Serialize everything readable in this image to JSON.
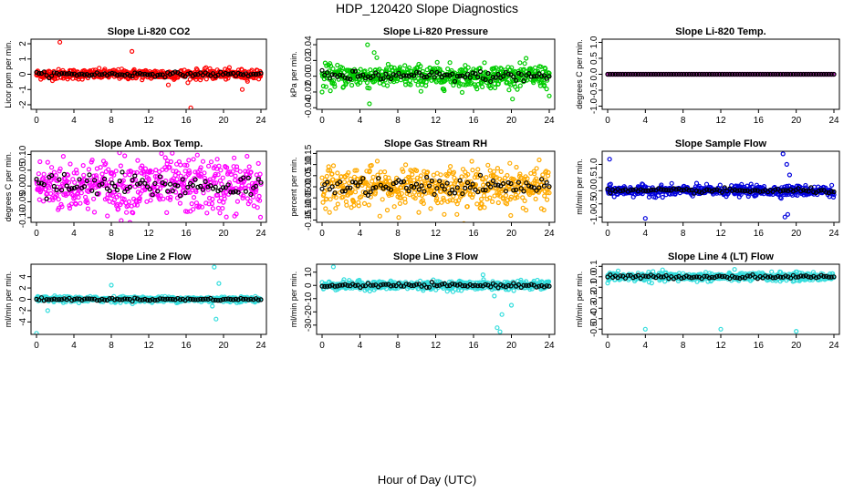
{
  "page": {
    "title": "HDP_120420  Slope Diagnostics",
    "xlabel": "Hour of Day (UTC)"
  },
  "chart_data": [
    {
      "type": "scatter",
      "title": "Slope Li-820 CO2",
      "ylabel": "Licor ppm per min.",
      "xlim": [
        0,
        24
      ],
      "ylim": [
        -2.3,
        2.3
      ],
      "xticks": [
        "0",
        "4",
        "8",
        "12",
        "16",
        "20",
        "24"
      ],
      "yticks": [
        "-2",
        "-1",
        "0",
        "1",
        "2"
      ],
      "ytick_values": [
        -2,
        -1,
        0,
        1,
        2
      ],
      "color": "#ff0000",
      "spread": 0.2,
      "outliers": [
        [
          2.5,
          2.1
        ],
        [
          10.2,
          1.5
        ],
        [
          16.5,
          -2.2
        ],
        [
          22,
          -1.0
        ],
        [
          14.1,
          -0.7
        ]
      ]
    },
    {
      "type": "scatter",
      "title": "Slope Li-820 Pressure",
      "ylabel": "kPa per min.",
      "xlim": [
        0,
        24
      ],
      "ylim": [
        -0.042,
        0.047
      ],
      "xticks": [
        "0",
        "4",
        "8",
        "12",
        "16",
        "20",
        "24"
      ],
      "yticks": [
        "-0.04",
        "-0.02",
        "0.00",
        "0.02",
        "0.04"
      ],
      "ytick_values": [
        -0.04,
        -0.02,
        0,
        0.02,
        0.04
      ],
      "color": "#00cc00",
      "spread": 0.009,
      "outliers": [
        [
          5,
          -0.035
        ],
        [
          5.5,
          0.03
        ],
        [
          0,
          -0.02
        ],
        [
          24,
          -0.025
        ],
        [
          4.8,
          0.04
        ]
      ]
    },
    {
      "type": "scatter",
      "title": "Slope Li-820 Temp.",
      "ylabel": "degrees C per min.",
      "xlim": [
        0,
        24
      ],
      "ylim": [
        -1.1,
        1.1
      ],
      "xticks": [
        "0",
        "4",
        "8",
        "12",
        "16",
        "20",
        "24"
      ],
      "yticks": [
        "-1.0",
        "-0.5",
        "0.0",
        "0.5",
        "1.0"
      ],
      "ytick_values": [
        -1,
        -0.5,
        0,
        0.5,
        1
      ],
      "color": "#cc33cc",
      "spread": 0.0,
      "outliers": []
    },
    {
      "type": "scatter",
      "title": "Slope Amb. Box Temp.",
      "ylabel": "degrees C per min.",
      "xlim": [
        0,
        24
      ],
      "ylim": [
        -0.115,
        0.11
      ],
      "xticks": [
        "0",
        "4",
        "8",
        "12",
        "16",
        "20",
        "24"
      ],
      "yticks": [
        "-0.10",
        "-0.05",
        "0.00",
        "0.05",
        "0.10"
      ],
      "ytick_values": [
        -0.1,
        -0.05,
        0,
        0.05,
        0.1
      ],
      "color": "#ff00ff",
      "spread": 0.055,
      "outliers": []
    },
    {
      "type": "scatter",
      "title": "Slope Gas Stream RH",
      "ylabel": "percent per min.",
      "xlim": [
        0,
        24
      ],
      "ylim": [
        -0.16,
        0.16
      ],
      "xticks": [
        "0",
        "4",
        "8",
        "12",
        "16",
        "20",
        "24"
      ],
      "yticks": [
        "-0.15",
        "-0.10",
        "-0.05",
        "0.00",
        "0.05",
        "0.10",
        "0.15"
      ],
      "ytick_values": [
        -0.15,
        -0.1,
        -0.05,
        0,
        0.05,
        0.1,
        0.15
      ],
      "color": "#ffaa00",
      "spread": 0.055,
      "outliers": []
    },
    {
      "type": "scatter",
      "title": "Slope Sample Flow",
      "ylabel": "ml/min per min.",
      "xlim": [
        0,
        24
      ],
      "ylim": [
        -1.2,
        1.5
      ],
      "xticks": [
        "0",
        "4",
        "8",
        "12",
        "16",
        "20",
        "24"
      ],
      "yticks": [
        "-1.0",
        "-0.5",
        "0.0",
        "0.5",
        "1.0"
      ],
      "ytick_values": [
        -1,
        -0.5,
        0,
        0.5,
        1
      ],
      "color": "#0000dd",
      "spread": 0.12,
      "outliers": [
        [
          0.2,
          1.2
        ],
        [
          4,
          -1.05
        ],
        [
          18.6,
          1.4
        ],
        [
          19,
          1.0
        ],
        [
          19.3,
          0.6
        ],
        [
          19.1,
          -0.9
        ],
        [
          18.8,
          -1.0
        ]
      ]
    },
    {
      "type": "scatter",
      "title": "Slope Line 2 Flow",
      "ylabel": "ml/min per min.",
      "xlim": [
        0,
        24
      ],
      "ylim": [
        -6.2,
        6.2
      ],
      "xticks": [
        "0",
        "4",
        "8",
        "12",
        "16",
        "20",
        "24"
      ],
      "yticks": [
        "-4",
        "-2",
        "0",
        "2",
        "4"
      ],
      "ytick_values": [
        -4,
        -2,
        0,
        2,
        4
      ],
      "color": "#33dddd",
      "spread": 0.3,
      "outliers": [
        [
          0,
          -6
        ],
        [
          8,
          2.5
        ],
        [
          19,
          5.7
        ],
        [
          19.2,
          -3.5
        ],
        [
          18.8,
          -1.2
        ],
        [
          19.5,
          2.8
        ],
        [
          1.2,
          -2
        ]
      ]
    },
    {
      "type": "scatter",
      "title": "Slope Line 3 Flow",
      "ylabel": "ml/min per min.",
      "xlim": [
        0,
        24
      ],
      "ylim": [
        -37,
        16
      ],
      "xticks": [
        "0",
        "4",
        "8",
        "12",
        "16",
        "20",
        "24"
      ],
      "yticks": [
        "-30",
        "-20",
        "-10",
        "0",
        "10"
      ],
      "ytick_values": [
        -30,
        -20,
        -10,
        0,
        10
      ],
      "color": "#33dddd",
      "spread": 2,
      "outliers": [
        [
          1.2,
          14
        ],
        [
          18.5,
          -32
        ],
        [
          18.8,
          -35
        ],
        [
          19,
          -22
        ],
        [
          20,
          -15
        ],
        [
          18.2,
          -8
        ],
        [
          17,
          8
        ],
        [
          21,
          4
        ]
      ]
    },
    {
      "type": "scatter",
      "title": "Slope Line 4 (LT) Flow",
      "ylabel": "ml/min per min.",
      "xlim": [
        0,
        24
      ],
      "ylim": [
        -0.55,
        0.12
      ],
      "xticks": [
        "0",
        "4",
        "8",
        "12",
        "16",
        "20",
        "24"
      ],
      "yticks": [
        "-0.5",
        "-0.4",
        "-0.3",
        "-0.2",
        "-0.1",
        "0.0",
        "0.1"
      ],
      "ytick_values": [
        -0.5,
        -0.4,
        -0.3,
        -0.2,
        -0.1,
        0,
        0.1
      ],
      "color": "#33dddd",
      "spread": 0.025,
      "outliers": [
        [
          4,
          -0.5
        ],
        [
          12,
          -0.5
        ],
        [
          20,
          -0.52
        ],
        [
          0,
          -0.06
        ]
      ]
    }
  ]
}
